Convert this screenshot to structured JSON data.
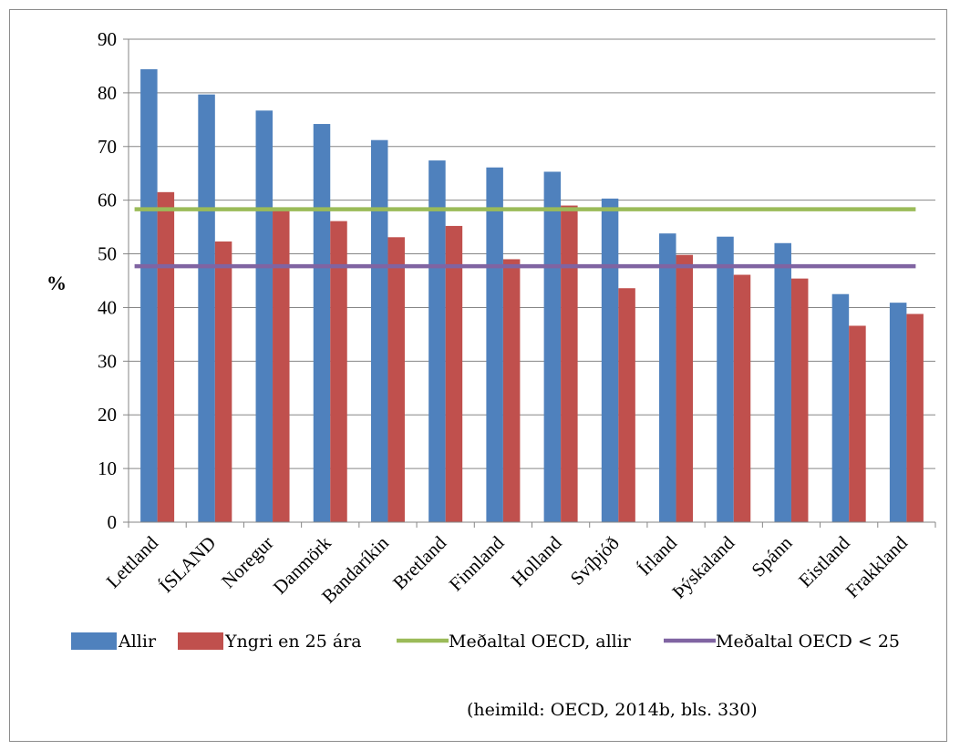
{
  "chart_data": {
    "type": "bar",
    "ylabel": "%",
    "ylim": [
      0,
      90
    ],
    "yticks": [
      0,
      10,
      20,
      30,
      40,
      50,
      60,
      70,
      80,
      90
    ],
    "grid": true,
    "legend_position": "bottom",
    "categories": [
      "Lettland",
      "ÍSLAND",
      "Noregur",
      "Danmörk",
      "Bandaríkin",
      "Bretland",
      "Finnland",
      "Holland",
      "Svíþjóð",
      "Írland",
      "Þýskaland",
      "Spánn",
      "Eistland",
      "Frakkland"
    ],
    "series": [
      {
        "name": "Allir",
        "color": "#4f81bd",
        "values": [
          84.4,
          79.7,
          76.7,
          74.2,
          71.2,
          67.4,
          66.1,
          65.3,
          60.3,
          53.8,
          53.2,
          52.0,
          42.5,
          40.9
        ]
      },
      {
        "name": "Yngri en 25 ára",
        "color": "#c0504d",
        "values": [
          61.5,
          52.3,
          58.0,
          56.1,
          53.1,
          55.2,
          49.0,
          59.0,
          43.6,
          49.8,
          46.1,
          45.4,
          36.6,
          38.8
        ]
      }
    ],
    "reference_lines": [
      {
        "name": "Meðaltal OECD, allir",
        "color": "#9bbb59",
        "value": 58.3
      },
      {
        "name": "Meðaltal OECD < 25",
        "color": "#8064a2",
        "value": 47.7
      }
    ]
  },
  "source_note": "(heimild: OECD, 2014b, bls. 330)"
}
